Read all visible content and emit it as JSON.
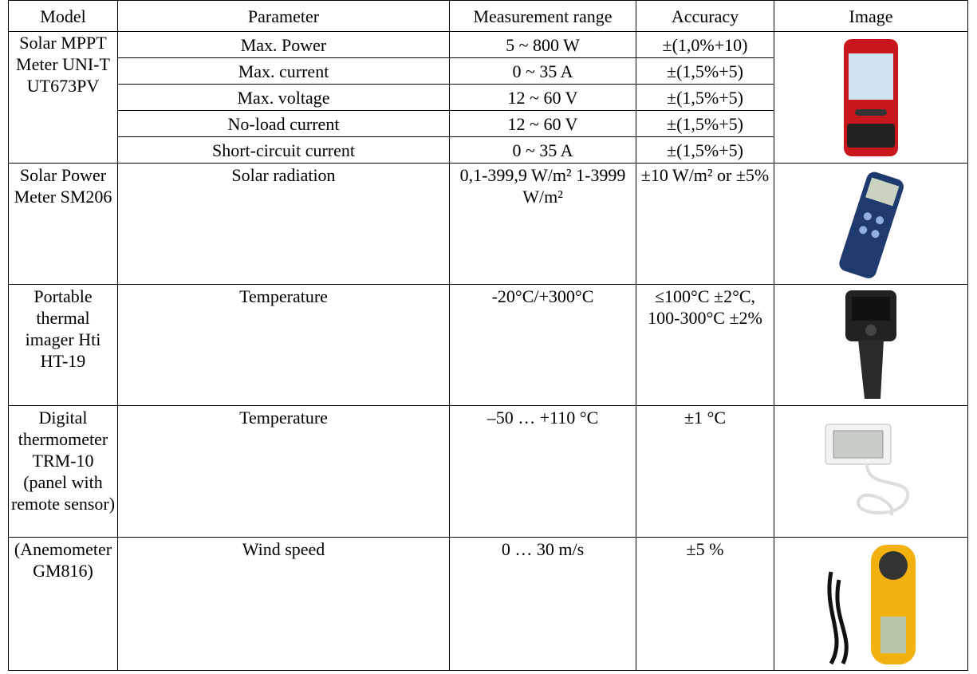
{
  "table": {
    "header": [
      "Model",
      "Parameter",
      "Measurement range",
      "Accuracy",
      "Image"
    ],
    "rows": [
      {
        "model": "Solar MPPT Meter UNI-T UT673PV",
        "params": [
          {
            "parameter": "Max. Power",
            "range": "5 ~ 800 W",
            "accuracy": "±(1,0%+10)"
          },
          {
            "parameter": "Max. current",
            "range": "0 ~ 35 A",
            "accuracy": "±(1,5%+5)"
          },
          {
            "parameter": "Max. voltage",
            "range": "12 ~ 60 V",
            "accuracy": "±(1,5%+5)"
          },
          {
            "parameter": "No-load current",
            "range": "12 ~ 60 V",
            "accuracy": "±(1,5%+5)"
          },
          {
            "parameter": "Short-circuit current",
            "range": "0 ~ 35 A",
            "accuracy": "±(1,5%+5)"
          }
        ]
      },
      {
        "model": "Solar Power Meter SM206",
        "params": [
          {
            "parameter": "Solar radiation",
            "range": "0,1-399,9 W/m² 1-3999 W/m²",
            "accuracy": "±10 W/m² or ±5%"
          }
        ]
      },
      {
        "model": "Portable thermal imager Hti HT-19",
        "params": [
          {
            "parameter": "Temperature",
            "range": "-20°C/+300°C",
            "accuracy": "≤100°C ±2°C, 100-300°C ±2%"
          }
        ]
      },
      {
        "model": "Digital thermometer TRM-10 (panel with remote sensor)",
        "params": [
          {
            "parameter": "Temperature",
            "range": "–50 … +110 °C",
            "accuracy": "±1 °C"
          }
        ]
      },
      {
        "model": "(Anemometer GM816)",
        "params": [
          {
            "parameter": "Wind speed",
            "range": "0 … 30 m/s",
            "accuracy": "±5 %"
          }
        ]
      }
    ]
  }
}
